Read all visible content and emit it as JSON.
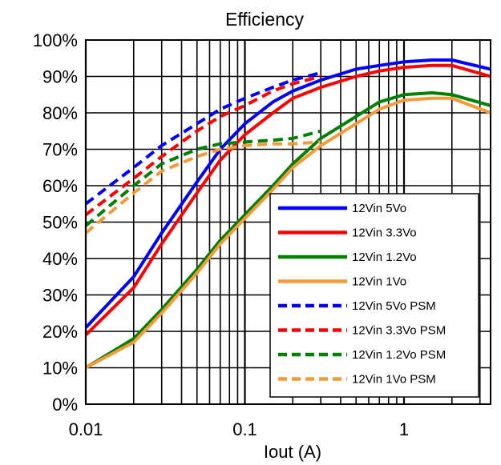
{
  "chart_data": {
    "type": "line",
    "title": "Efficiency",
    "xlabel": "Iout (A)",
    "ylabel": "",
    "x_scale": "log",
    "xlim": [
      0.01,
      3.5
    ],
    "ylim": [
      0,
      100
    ],
    "x_ticks": [
      0.01,
      0.1,
      1
    ],
    "x_tick_labels": [
      "0.01",
      "0.1",
      "1"
    ],
    "y_ticks": [
      0,
      10,
      20,
      30,
      40,
      50,
      60,
      70,
      80,
      90,
      100
    ],
    "y_tick_labels": [
      "0%",
      "10%",
      "20%",
      "30%",
      "40%",
      "50%",
      "60%",
      "70%",
      "80%",
      "90%",
      "100%"
    ],
    "grid": true,
    "legend_position": "lower-right",
    "series": [
      {
        "name": "12Vin 5Vo",
        "color": "#0000ff",
        "style": "solid",
        "x": [
          0.01,
          0.02,
          0.03,
          0.05,
          0.07,
          0.1,
          0.15,
          0.2,
          0.3,
          0.5,
          0.7,
          1,
          1.5,
          2,
          3.5
        ],
        "y": [
          21,
          35,
          47,
          61,
          70,
          77,
          83,
          86,
          89,
          92,
          93,
          94,
          94.5,
          94.5,
          92
        ]
      },
      {
        "name": "12Vin 3.3Vo",
        "color": "#ff0000",
        "style": "solid",
        "x": [
          0.01,
          0.02,
          0.03,
          0.05,
          0.07,
          0.1,
          0.15,
          0.2,
          0.3,
          0.5,
          0.7,
          1,
          1.5,
          2,
          3.5
        ],
        "y": [
          19,
          32,
          44,
          58,
          67,
          74,
          80,
          84,
          87,
          90,
          91.5,
          92.5,
          93,
          93,
          90
        ]
      },
      {
        "name": "12Vin 1.2Vo",
        "color": "#008000",
        "style": "solid",
        "x": [
          0.01,
          0.02,
          0.03,
          0.05,
          0.07,
          0.1,
          0.15,
          0.2,
          0.3,
          0.5,
          0.7,
          1,
          1.5,
          2,
          3.5
        ],
        "y": [
          10,
          18,
          26,
          37,
          45,
          52,
          60,
          66,
          73,
          79,
          83,
          85,
          85.5,
          85,
          82
        ]
      },
      {
        "name": "12Vin 1Vo",
        "color": "#f59a3a",
        "style": "solid",
        "x": [
          0.01,
          0.02,
          0.03,
          0.05,
          0.07,
          0.1,
          0.15,
          0.2,
          0.3,
          0.5,
          0.7,
          1,
          1.5,
          2,
          3.5
        ],
        "y": [
          10,
          17,
          25,
          36,
          44,
          51,
          59,
          65,
          71,
          77,
          81,
          83.5,
          84,
          84,
          80
        ]
      },
      {
        "name": "12Vin 5Vo PSM",
        "color": "#0000ff",
        "style": "dashed",
        "x": [
          0.01,
          0.02,
          0.03,
          0.05,
          0.07,
          0.1,
          0.15,
          0.2,
          0.3
        ],
        "y": [
          55,
          65,
          71,
          77,
          81,
          84,
          87,
          89,
          91
        ]
      },
      {
        "name": "12Vin 3.3Vo PSM",
        "color": "#ff0000",
        "style": "dashed",
        "x": [
          0.01,
          0.02,
          0.03,
          0.05,
          0.07,
          0.1,
          0.15,
          0.2,
          0.3
        ],
        "y": [
          52,
          62,
          68,
          75,
          79,
          82,
          86,
          88,
          90
        ]
      },
      {
        "name": "12Vin 1.2Vo PSM",
        "color": "#008000",
        "style": "dashed",
        "x": [
          0.01,
          0.02,
          0.03,
          0.05,
          0.07,
          0.1,
          0.15,
          0.2,
          0.3
        ],
        "y": [
          49,
          60,
          66,
          70,
          71.5,
          72,
          72.5,
          73,
          75
        ]
      },
      {
        "name": "12Vin 1Vo PSM",
        "color": "#f59a3a",
        "style": "dashed",
        "x": [
          0.01,
          0.02,
          0.03,
          0.05,
          0.07,
          0.1,
          0.15,
          0.2,
          0.3
        ],
        "y": [
          47,
          58,
          64,
          68,
          70,
          71,
          71.5,
          71.5,
          72
        ]
      }
    ]
  }
}
